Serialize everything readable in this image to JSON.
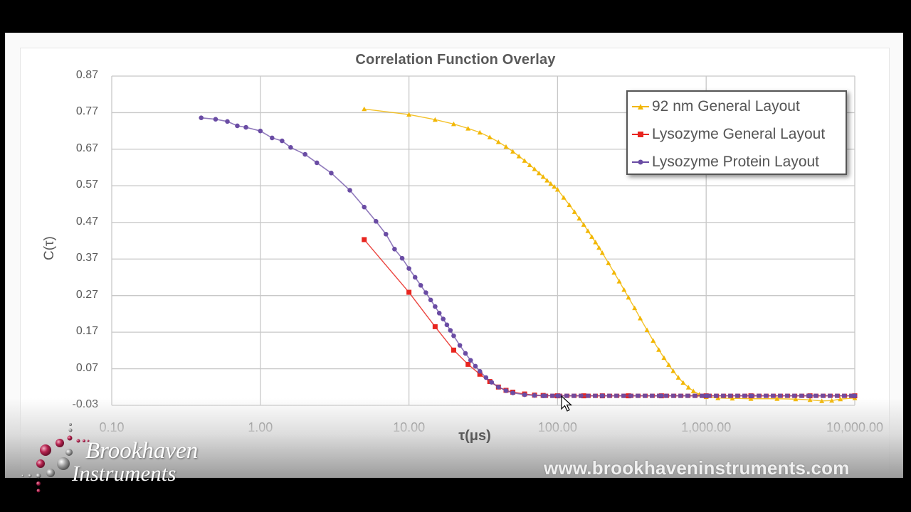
{
  "chart_data": {
    "type": "line",
    "title": "Correlation Function Overlay",
    "xlabel": "τ(μs)",
    "ylabel": "C(τ)",
    "x_scale": "log",
    "xlim": [
      0.1,
      10000
    ],
    "ylim": [
      -0.03,
      0.87
    ],
    "x_ticks": [
      "0.10",
      "1.00",
      "10.00",
      "100.00",
      "1,000.00",
      "10,000.00"
    ],
    "y_ticks": [
      "0.87",
      "0.77",
      "0.67",
      "0.57",
      "0.47",
      "0.37",
      "0.27",
      "0.17",
      "0.07",
      "-0.03"
    ],
    "grid": true,
    "legend_position": "upper right (inside)",
    "series": [
      {
        "name": "92 nm General Layout",
        "color": "#F2B705",
        "marker": "triangle",
        "x": [
          5.0,
          10.0,
          15.0,
          20.0,
          25.0,
          30.0,
          35.0,
          40.0,
          45.0,
          50.0,
          55.0,
          60.0,
          65.0,
          70.0,
          75.0,
          80.0,
          85.0,
          90.0,
          95.0,
          100.0,
          110.0,
          120.0,
          130.0,
          140.0,
          150.0,
          160.0,
          170.0,
          180.0,
          190.0,
          200.0,
          220.0,
          240.0,
          260.0,
          280.0,
          300.0,
          330.0,
          360.0,
          400.0,
          440.0,
          480.0,
          520.0,
          560.0,
          600.0,
          650.0,
          700.0,
          760.0,
          820.0,
          900.0,
          1000.0,
          1200.0,
          1500.0,
          2000.0,
          3000.0,
          4000.0,
          5000.0,
          6000.0,
          7000.0,
          8000.0,
          10000.0
        ],
        "values": [
          0.78,
          0.765,
          0.751,
          0.739,
          0.727,
          0.716,
          0.703,
          0.69,
          0.677,
          0.664,
          0.651,
          0.639,
          0.627,
          0.616,
          0.605,
          0.595,
          0.585,
          0.576,
          0.568,
          0.56,
          0.538,
          0.518,
          0.499,
          0.481,
          0.464,
          0.447,
          0.431,
          0.416,
          0.401,
          0.387,
          0.359,
          0.333,
          0.309,
          0.286,
          0.265,
          0.236,
          0.208,
          0.176,
          0.147,
          0.122,
          0.1,
          0.081,
          0.064,
          0.046,
          0.032,
          0.019,
          0.009,
          0.0,
          -0.007,
          -0.01,
          -0.011,
          -0.012,
          -0.012,
          -0.013,
          -0.015,
          -0.018,
          -0.017,
          -0.013,
          -0.01
        ]
      },
      {
        "name": "Lysozyme General Layout",
        "color": "#E8251F",
        "marker": "square",
        "x": [
          5.0,
          10.0,
          15.0,
          20.0,
          25.0,
          30.0,
          35.0,
          40.0,
          45.0,
          50.0,
          60.0,
          70.0,
          80.0,
          100.0,
          150.0,
          200.0,
          300.0,
          500.0,
          1000.0,
          2000.0,
          5000.0,
          10000.0
        ],
        "values": [
          0.423,
          0.279,
          0.185,
          0.121,
          0.082,
          0.055,
          0.035,
          0.02,
          0.011,
          0.006,
          0.001,
          -0.002,
          -0.003,
          -0.004,
          -0.004,
          -0.004,
          -0.004,
          -0.004,
          -0.004,
          -0.004,
          -0.004,
          -0.004
        ]
      },
      {
        "name": "Lysozyme Protein Layout",
        "color": "#6A4CA4",
        "marker": "circle",
        "x": [
          0.4,
          0.5,
          0.6,
          0.7,
          0.8,
          1.0,
          1.2,
          1.4,
          1.6,
          2.0,
          2.4,
          3.0,
          4.0,
          5.0,
          6.0,
          7.0,
          8.0,
          9.0,
          10.0,
          11.0,
          12.0,
          13.0,
          14.0,
          15.0,
          16.0,
          17.0,
          18.0,
          19.0,
          20.0,
          22.0,
          24.0,
          26.0,
          28.0,
          30.0,
          33.0,
          36.0,
          40.0,
          45.0,
          50.0,
          60.0,
          70.0,
          80.0,
          100.0,
          200.0,
          500.0,
          1000.0,
          2000.0,
          5000.0,
          10000.0
        ],
        "values": [
          0.756,
          0.752,
          0.746,
          0.734,
          0.73,
          0.72,
          0.701,
          0.693,
          0.675,
          0.656,
          0.633,
          0.605,
          0.558,
          0.512,
          0.473,
          0.438,
          0.397,
          0.372,
          0.344,
          0.32,
          0.298,
          0.278,
          0.258,
          0.24,
          0.222,
          0.206,
          0.19,
          0.175,
          0.16,
          0.134,
          0.112,
          0.093,
          0.077,
          0.063,
          0.046,
          0.033,
          0.02,
          0.01,
          0.004,
          -0.001,
          -0.003,
          -0.004,
          -0.004,
          -0.004,
          -0.004,
          -0.004,
          -0.004,
          -0.004,
          -0.004
        ]
      }
    ]
  },
  "branding": {
    "logo_line1": "Brookhaven",
    "logo_line2": "Instruments",
    "url": "www.brookhaveninstruments.com"
  }
}
